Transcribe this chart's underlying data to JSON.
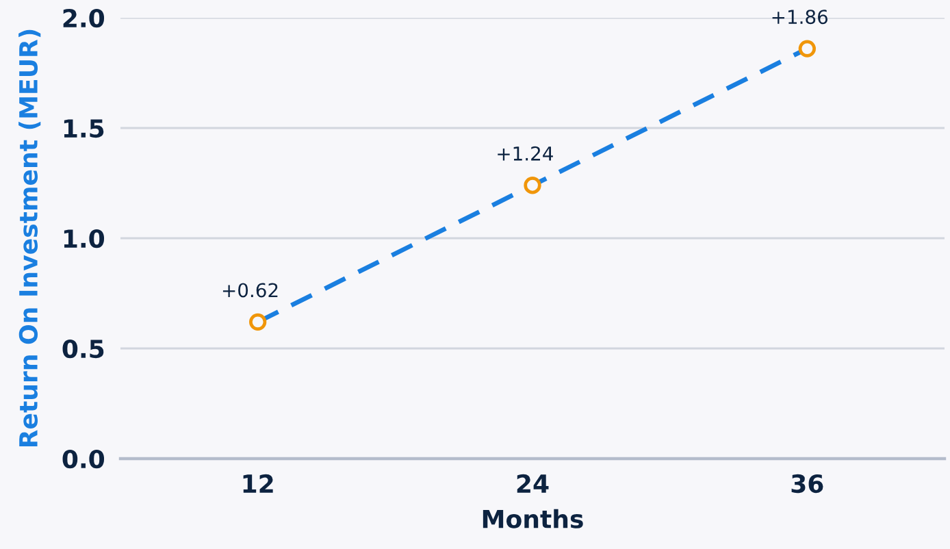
{
  "chart_data": {
    "type": "line",
    "xlabel": "Months",
    "ylabel": "Return On Investment (MEUR)",
    "categories": [
      "12",
      "24",
      "36"
    ],
    "series": [
      {
        "color": "#1a7fe0",
        "colors": [
          "#f0960a",
          "#f0960a",
          "#f0960a"
        ],
        "values": [
          0.62,
          1.24,
          1.86
        ],
        "value_labels": [
          "+0.62",
          "+1.24",
          "+1.86"
        ]
      }
    ],
    "ylim": [
      0,
      2.0
    ],
    "yticks": [
      {
        "value": 0,
        "label": "0.0"
      },
      0.5,
      {
        "value": 1,
        "label": "1.0"
      },
      1.5,
      {
        "value": 2,
        "label": "2.0"
      }
    ],
    "grid": "y",
    "legend": false,
    "marker": "circle",
    "line_style": "dashed"
  }
}
